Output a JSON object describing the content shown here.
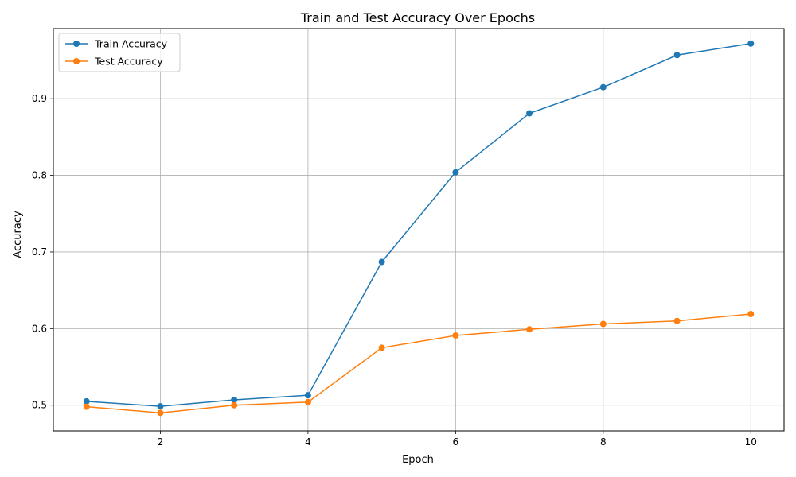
{
  "chart_data": {
    "type": "line",
    "title": "Train and Test Accuracy Over Epochs",
    "xlabel": "Epoch",
    "ylabel": "Accuracy",
    "x": [
      1,
      2,
      3,
      4,
      5,
      6,
      7,
      8,
      9,
      10
    ],
    "xticks": [
      2,
      4,
      6,
      8,
      10
    ],
    "yticks": [
      0.5,
      0.6,
      0.7,
      0.8,
      0.9
    ],
    "xlim": [
      0.55,
      10.45
    ],
    "ylim": [
      0.4665,
      0.9915
    ],
    "grid": true,
    "legend_position": "top-left",
    "series": [
      {
        "name": "Train Accuracy",
        "color": "#1f77b4",
        "values": [
          0.505,
          0.4985,
          0.507,
          0.513,
          0.687,
          0.804,
          0.881,
          0.915,
          0.957,
          0.972
        ]
      },
      {
        "name": "Test Accuracy",
        "color": "#ff7f0e",
        "values": [
          0.498,
          0.49,
          0.5,
          0.504,
          0.575,
          0.591,
          0.599,
          0.606,
          0.61,
          0.619
        ]
      }
    ]
  }
}
